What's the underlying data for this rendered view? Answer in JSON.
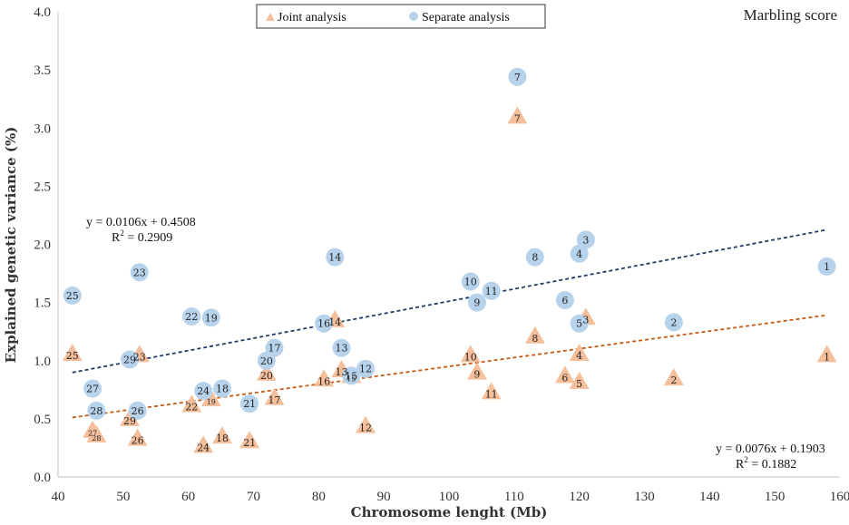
{
  "chart_data": {
    "type": "scatter",
    "title": "Marbling score",
    "xlabel": "Chromosome lenght (Mb)",
    "ylabel": "Explained genetic variance (%)",
    "xlim": [
      40,
      160
    ],
    "ylim": [
      0,
      4.0
    ],
    "x_ticks": [
      "40",
      "50",
      "60",
      "70",
      "80",
      "90",
      "100",
      "110",
      "120",
      "130",
      "140",
      "150",
      "160"
    ],
    "y_ticks": [
      "0.0",
      "0.5",
      "1.0",
      "1.5",
      "2.0",
      "2.5",
      "3.0",
      "3.5",
      "4.0"
    ],
    "grid": false,
    "legend": "top-center",
    "series": [
      {
        "name": "Joint analysis",
        "marker": "triangle",
        "color": "#f5bf9b",
        "trend_color": "#c75b12",
        "trendline": {
          "slope": 0.0076,
          "intercept": 0.1903
        },
        "equation": "y = 0.0076x + 0.1903",
        "r2_label": "R",
        "r2_exp": "2",
        "r2_value": " = 0.1882",
        "points": [
          {
            "label": "1",
            "x": 158.0,
            "y": 1.05
          },
          {
            "label": "2",
            "x": 134.5,
            "y": 0.85
          },
          {
            "label": "3",
            "x": 121.0,
            "y": 1.37
          },
          {
            "label": "4",
            "x": 120.0,
            "y": 1.06
          },
          {
            "label": "5",
            "x": 120.0,
            "y": 0.82
          },
          {
            "label": "6",
            "x": 117.8,
            "y": 0.87
          },
          {
            "label": "7",
            "x": 110.5,
            "y": 3.1
          },
          {
            "label": "8",
            "x": 113.2,
            "y": 1.21
          },
          {
            "label": "9",
            "x": 104.3,
            "y": 0.9
          },
          {
            "label": "10",
            "x": 103.3,
            "y": 1.05
          },
          {
            "label": "11",
            "x": 106.5,
            "y": 0.73
          },
          {
            "label": "12",
            "x": 87.2,
            "y": 0.44
          },
          {
            "label": "13",
            "x": 83.5,
            "y": 0.92
          },
          {
            "label": "14",
            "x": 82.5,
            "y": 1.35
          },
          {
            "label": "15",
            "x": 85.0,
            "y": 0.87
          },
          {
            "label": "16",
            "x": 80.8,
            "y": 0.84
          },
          {
            "label": "17",
            "x": 73.2,
            "y": 0.68
          },
          {
            "label": "18",
            "x": 65.2,
            "y": 0.35
          },
          {
            "label": "19",
            "x": 63.5,
            "y": 0.67
          },
          {
            "label": "20",
            "x": 72.0,
            "y": 0.89
          },
          {
            "label": "21",
            "x": 69.4,
            "y": 0.31
          },
          {
            "label": "22",
            "x": 60.5,
            "y": 0.62
          },
          {
            "label": "23",
            "x": 52.5,
            "y": 1.05
          },
          {
            "label": "24",
            "x": 62.3,
            "y": 0.27
          },
          {
            "label": "25",
            "x": 42.2,
            "y": 1.06
          },
          {
            "label": "26",
            "x": 52.2,
            "y": 0.33
          },
          {
            "label": "27",
            "x": 45.3,
            "y": 0.4
          },
          {
            "label": "28",
            "x": 45.9,
            "y": 0.36
          },
          {
            "label": "29",
            "x": 51.0,
            "y": 0.5
          }
        ]
      },
      {
        "name": "Separate analysis",
        "marker": "circle",
        "color": "#b7d3ec",
        "trend_color": "#1f3d64",
        "trendline": {
          "slope": 0.0106,
          "intercept": 0.4508
        },
        "equation": "y = 0.0106x + 0.4508",
        "r2_label": "R",
        "r2_exp": "2",
        "r2_value": " = 0.2909",
        "points": [
          {
            "label": "1",
            "x": 158.0,
            "y": 1.81
          },
          {
            "label": "2",
            "x": 134.5,
            "y": 1.33
          },
          {
            "label": "3",
            "x": 121.0,
            "y": 2.04
          },
          {
            "label": "4",
            "x": 120.0,
            "y": 1.92
          },
          {
            "label": "5",
            "x": 120.0,
            "y": 1.32
          },
          {
            "label": "6",
            "x": 117.8,
            "y": 1.52
          },
          {
            "label": "7",
            "x": 110.5,
            "y": 3.44
          },
          {
            "label": "8",
            "x": 113.2,
            "y": 1.89
          },
          {
            "label": "9",
            "x": 104.3,
            "y": 1.5
          },
          {
            "label": "10",
            "x": 103.3,
            "y": 1.68
          },
          {
            "label": "11",
            "x": 106.5,
            "y": 1.6
          },
          {
            "label": "12",
            "x": 87.2,
            "y": 0.93
          },
          {
            "label": "13",
            "x": 83.5,
            "y": 1.11
          },
          {
            "label": "14",
            "x": 82.5,
            "y": 1.89
          },
          {
            "label": "15",
            "x": 85.0,
            "y": 0.87
          },
          {
            "label": "16",
            "x": 80.8,
            "y": 1.32
          },
          {
            "label": "17",
            "x": 73.2,
            "y": 1.11
          },
          {
            "label": "18",
            "x": 65.2,
            "y": 0.76
          },
          {
            "label": "19",
            "x": 63.5,
            "y": 1.37
          },
          {
            "label": "20",
            "x": 72.0,
            "y": 1.0
          },
          {
            "label": "21",
            "x": 69.4,
            "y": 0.63
          },
          {
            "label": "22",
            "x": 60.5,
            "y": 1.38
          },
          {
            "label": "23",
            "x": 52.5,
            "y": 1.76
          },
          {
            "label": "24",
            "x": 62.3,
            "y": 0.74
          },
          {
            "label": "25",
            "x": 42.2,
            "y": 1.56
          },
          {
            "label": "26",
            "x": 52.2,
            "y": 0.57
          },
          {
            "label": "27",
            "x": 45.3,
            "y": 0.76
          },
          {
            "label": "28",
            "x": 45.9,
            "y": 0.57
          },
          {
            "label": "29",
            "x": 51.0,
            "y": 1.01
          }
        ]
      }
    ]
  }
}
